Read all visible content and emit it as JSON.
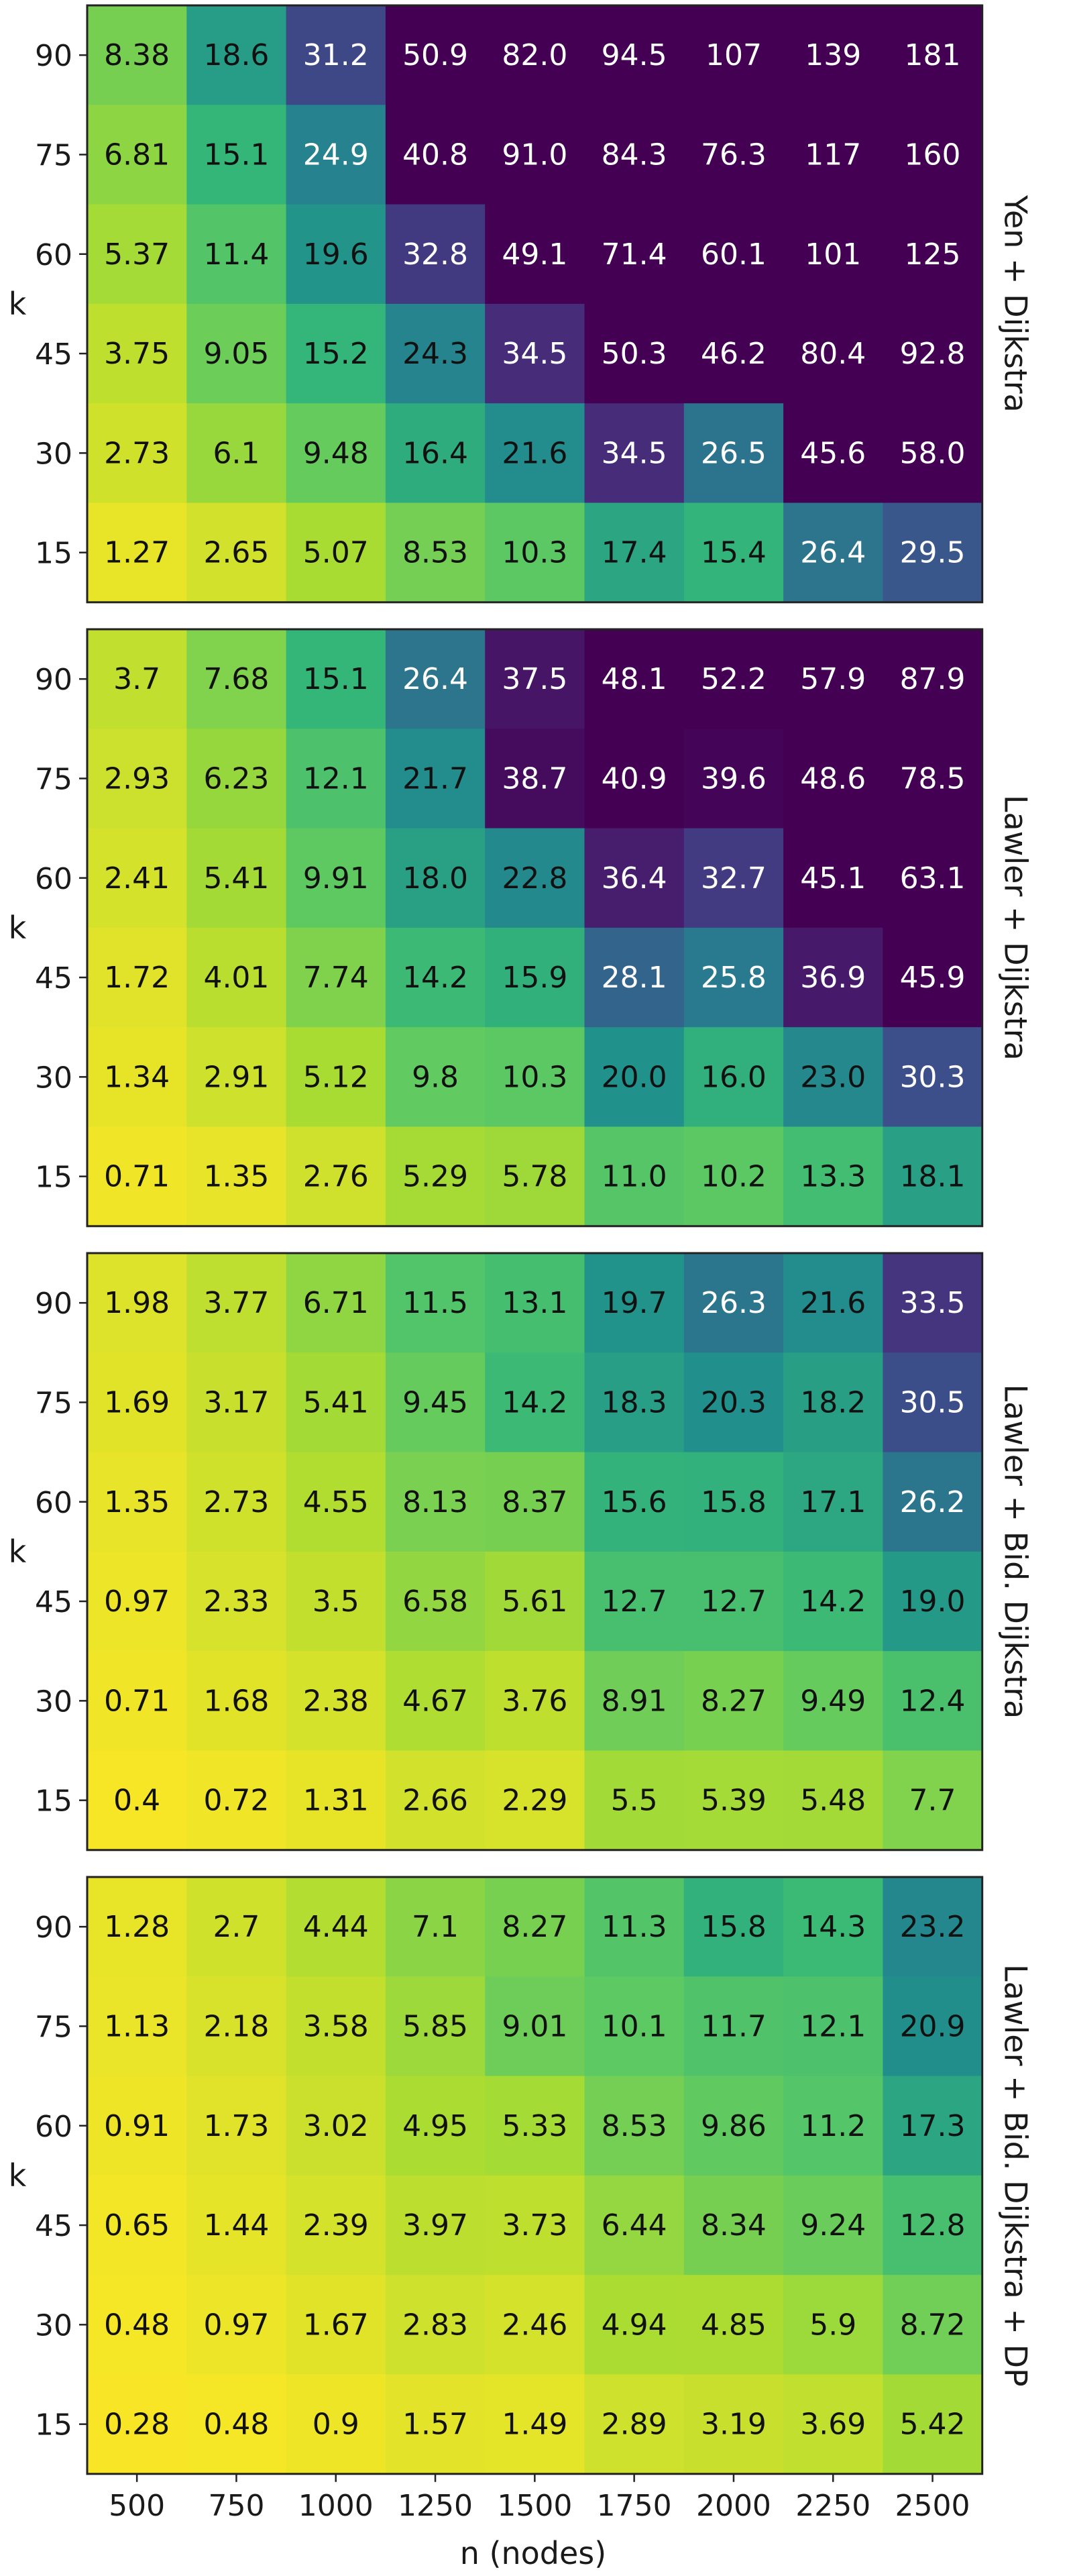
{
  "chart_data": {
    "type": "heatmap",
    "xlabel": "n (nodes)",
    "ylabel": "k",
    "x": [
      "500",
      "750",
      "1000",
      "1250",
      "1500",
      "1750",
      "2000",
      "2250",
      "2500"
    ],
    "y": [
      "90",
      "75",
      "60",
      "45",
      "30",
      "15"
    ],
    "colormap": "viridis (reversed)",
    "color_range": [
      0,
      40
    ],
    "panels": [
      {
        "name": "Yen + Dijkstra",
        "values": [
          [
            "8.38",
            "18.6",
            "31.2",
            "50.9",
            "82.0",
            "94.5",
            "107",
            "139",
            "181"
          ],
          [
            "6.81",
            "15.1",
            "24.9",
            "40.8",
            "91.0",
            "84.3",
            "76.3",
            "117",
            "160"
          ],
          [
            "5.37",
            "11.4",
            "19.6",
            "32.8",
            "49.1",
            "71.4",
            "60.1",
            "101",
            "125"
          ],
          [
            "3.75",
            "9.05",
            "15.2",
            "24.3",
            "34.5",
            "50.3",
            "46.2",
            "80.4",
            "92.8"
          ],
          [
            "2.73",
            "6.1",
            "9.48",
            "16.4",
            "21.6",
            "34.5",
            "26.5",
            "45.6",
            "58.0"
          ],
          [
            "1.27",
            "2.65",
            "5.07",
            "8.53",
            "10.3",
            "17.4",
            "15.4",
            "26.4",
            "29.5"
          ]
        ]
      },
      {
        "name": "Lawler + Dijkstra",
        "values": [
          [
            "3.7",
            "7.68",
            "15.1",
            "26.4",
            "37.5",
            "48.1",
            "52.2",
            "57.9",
            "87.9"
          ],
          [
            "2.93",
            "6.23",
            "12.1",
            "21.7",
            "38.7",
            "40.9",
            "39.6",
            "48.6",
            "78.5"
          ],
          [
            "2.41",
            "5.41",
            "9.91",
            "18.0",
            "22.8",
            "36.4",
            "32.7",
            "45.1",
            "63.1"
          ],
          [
            "1.72",
            "4.01",
            "7.74",
            "14.2",
            "15.9",
            "28.1",
            "25.8",
            "36.9",
            "45.9"
          ],
          [
            "1.34",
            "2.91",
            "5.12",
            "9.8",
            "10.3",
            "20.0",
            "16.0",
            "23.0",
            "30.3"
          ],
          [
            "0.71",
            "1.35",
            "2.76",
            "5.29",
            "5.78",
            "11.0",
            "10.2",
            "13.3",
            "18.1"
          ]
        ]
      },
      {
        "name": "Lawler + Bid. Dijkstra",
        "values": [
          [
            "1.98",
            "3.77",
            "6.71",
            "11.5",
            "13.1",
            "19.7",
            "26.3",
            "21.6",
            "33.5"
          ],
          [
            "1.69",
            "3.17",
            "5.41",
            "9.45",
            "14.2",
            "18.3",
            "20.3",
            "18.2",
            "30.5"
          ],
          [
            "1.35",
            "2.73",
            "4.55",
            "8.13",
            "8.37",
            "15.6",
            "15.8",
            "17.1",
            "26.2"
          ],
          [
            "0.97",
            "2.33",
            "3.5",
            "6.58",
            "5.61",
            "12.7",
            "12.7",
            "14.2",
            "19.0"
          ],
          [
            "0.71",
            "1.68",
            "2.38",
            "4.67",
            "3.76",
            "8.91",
            "8.27",
            "9.49",
            "12.4"
          ],
          [
            "0.4",
            "0.72",
            "1.31",
            "2.66",
            "2.29",
            "5.5",
            "5.39",
            "5.48",
            "7.7"
          ]
        ]
      },
      {
        "name": "Lawler + Bid. Dijkstra + DP",
        "values": [
          [
            "1.28",
            "2.7",
            "4.44",
            "7.1",
            "8.27",
            "11.3",
            "15.8",
            "14.3",
            "23.2"
          ],
          [
            "1.13",
            "2.18",
            "3.58",
            "5.85",
            "9.01",
            "10.1",
            "11.7",
            "12.1",
            "20.9"
          ],
          [
            "0.91",
            "1.73",
            "3.02",
            "4.95",
            "5.33",
            "8.53",
            "9.86",
            "11.2",
            "17.3"
          ],
          [
            "0.65",
            "1.44",
            "2.39",
            "3.97",
            "3.73",
            "6.44",
            "8.34",
            "9.24",
            "12.8"
          ],
          [
            "0.48",
            "0.97",
            "1.67",
            "2.83",
            "2.46",
            "4.94",
            "4.85",
            "5.9",
            "8.72"
          ],
          [
            "0.28",
            "0.48",
            "0.9",
            "1.57",
            "1.49",
            "2.89",
            "3.19",
            "3.69",
            "5.42"
          ]
        ]
      }
    ]
  }
}
